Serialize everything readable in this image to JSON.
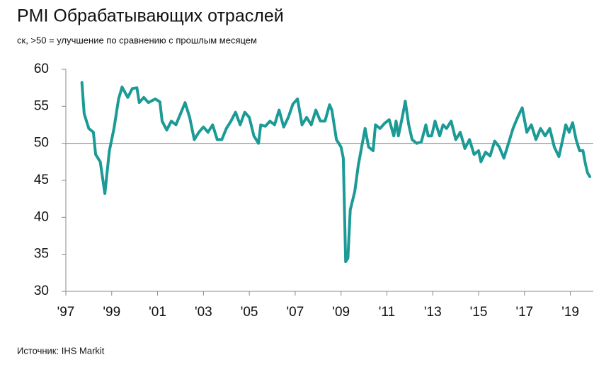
{
  "chart_data": {
    "type": "line",
    "title": "PMI Обрабатывающих отраслей",
    "subtitle": "ск, >50 = улучшение по сравнению с прошлым месяцем",
    "source": "Источник: IHS Markit",
    "x": [
      1997.7,
      1997.8,
      1998.0,
      1998.2,
      1998.3,
      1998.5,
      1998.7,
      1998.9,
      1999.1,
      1999.3,
      1999.45,
      1999.7,
      1999.9,
      2000.1,
      2000.2,
      2000.4,
      2000.6,
      2000.9,
      2001.1,
      2001.2,
      2001.4,
      2001.6,
      2001.8,
      2002.0,
      2002.2,
      2002.4,
      2002.6,
      2002.8,
      2003.0,
      2003.2,
      2003.4,
      2003.6,
      2003.8,
      2004.0,
      2004.2,
      2004.4,
      2004.6,
      2004.8,
      2005.0,
      2005.2,
      2005.4,
      2005.5,
      2005.7,
      2005.9,
      2006.1,
      2006.3,
      2006.5,
      2006.7,
      2006.9,
      2007.1,
      2007.3,
      2007.5,
      2007.7,
      2007.9,
      2008.1,
      2008.3,
      2008.5,
      2008.6,
      2008.8,
      2009.0,
      2009.1,
      2009.2,
      2009.3,
      2009.4,
      2009.6,
      2009.75,
      2009.9,
      2010.05,
      2010.2,
      2010.4,
      2010.5,
      2010.7,
      2010.9,
      2011.1,
      2011.3,
      2011.4,
      2011.5,
      2011.7,
      2011.8,
      2011.95,
      2012.1,
      2012.3,
      2012.5,
      2012.7,
      2012.8,
      2012.95,
      2013.1,
      2013.3,
      2013.45,
      2013.6,
      2013.8,
      2014.0,
      2014.2,
      2014.4,
      2014.6,
      2014.8,
      2015.0,
      2015.1,
      2015.3,
      2015.5,
      2015.7,
      2015.9,
      2016.1,
      2016.3,
      2016.5,
      2016.7,
      2016.9,
      2017.1,
      2017.3,
      2017.5,
      2017.7,
      2017.9,
      2018.1,
      2018.3,
      2018.5,
      2018.7,
      2018.8,
      2018.95,
      2019.1,
      2019.25,
      2019.4,
      2019.55,
      2019.65,
      2019.75,
      2019.85
    ],
    "series": [
      {
        "color": "#1b9a96",
        "values": [
          58.2,
          54,
          52,
          51.5,
          48.5,
          47.5,
          43.2,
          49,
          52,
          56,
          57.6,
          56.2,
          57.4,
          57.5,
          55.5,
          56.2,
          55.5,
          56,
          55.6,
          53,
          51.8,
          53,
          52.5,
          54,
          55.5,
          53.5,
          50.5,
          51.5,
          52.2,
          51.5,
          52.5,
          50.5,
          50.5,
          52,
          53,
          54.2,
          52.5,
          54.2,
          53.5,
          51,
          50,
          52.5,
          52.3,
          53,
          52.5,
          54.5,
          52.2,
          53.5,
          55.3,
          56,
          52.5,
          53.5,
          52.5,
          54.5,
          53,
          53,
          55.2,
          54.5,
          50.5,
          49.5,
          48,
          34,
          34.5,
          41,
          43.5,
          47,
          49.5,
          52,
          49.5,
          49,
          52.5,
          52,
          52.7,
          53.2,
          51,
          53,
          51,
          54,
          55.7,
          52.5,
          50.5,
          50,
          50.2,
          52.5,
          51,
          51,
          53,
          51,
          52.5,
          52,
          53,
          50.5,
          51.5,
          49.3,
          50.5,
          48.5,
          49,
          47.5,
          48.8,
          48.3,
          50.3,
          49.5,
          48,
          50,
          52,
          53.5,
          54.8,
          51.5,
          52.5,
          50.5,
          52,
          51,
          52,
          49.5,
          48.2,
          51,
          52.5,
          51.5,
          52.8,
          50.5,
          49,
          49,
          47.3,
          46,
          45.5
        ]
      }
    ],
    "xlim": [
      1997,
      2020
    ],
    "xticks": [
      {
        "value": 1997,
        "label": "'97"
      },
      {
        "value": 1999,
        "label": "'99"
      },
      {
        "value": 2001,
        "label": "'01"
      },
      {
        "value": 2003,
        "label": "'03"
      },
      {
        "value": 2005,
        "label": "'05"
      },
      {
        "value": 2007,
        "label": "'07"
      },
      {
        "value": 2009,
        "label": "'09"
      },
      {
        "value": 2011,
        "label": "'11"
      },
      {
        "value": 2013,
        "label": "'13"
      },
      {
        "value": 2015,
        "label": "'15"
      },
      {
        "value": 2017,
        "label": "'17"
      },
      {
        "value": 2019,
        "label": "'19"
      }
    ],
    "ylim": [
      30,
      60
    ],
    "yticks": [
      30,
      35,
      40,
      45,
      50,
      55,
      60
    ],
    "reference_line": 50
  }
}
